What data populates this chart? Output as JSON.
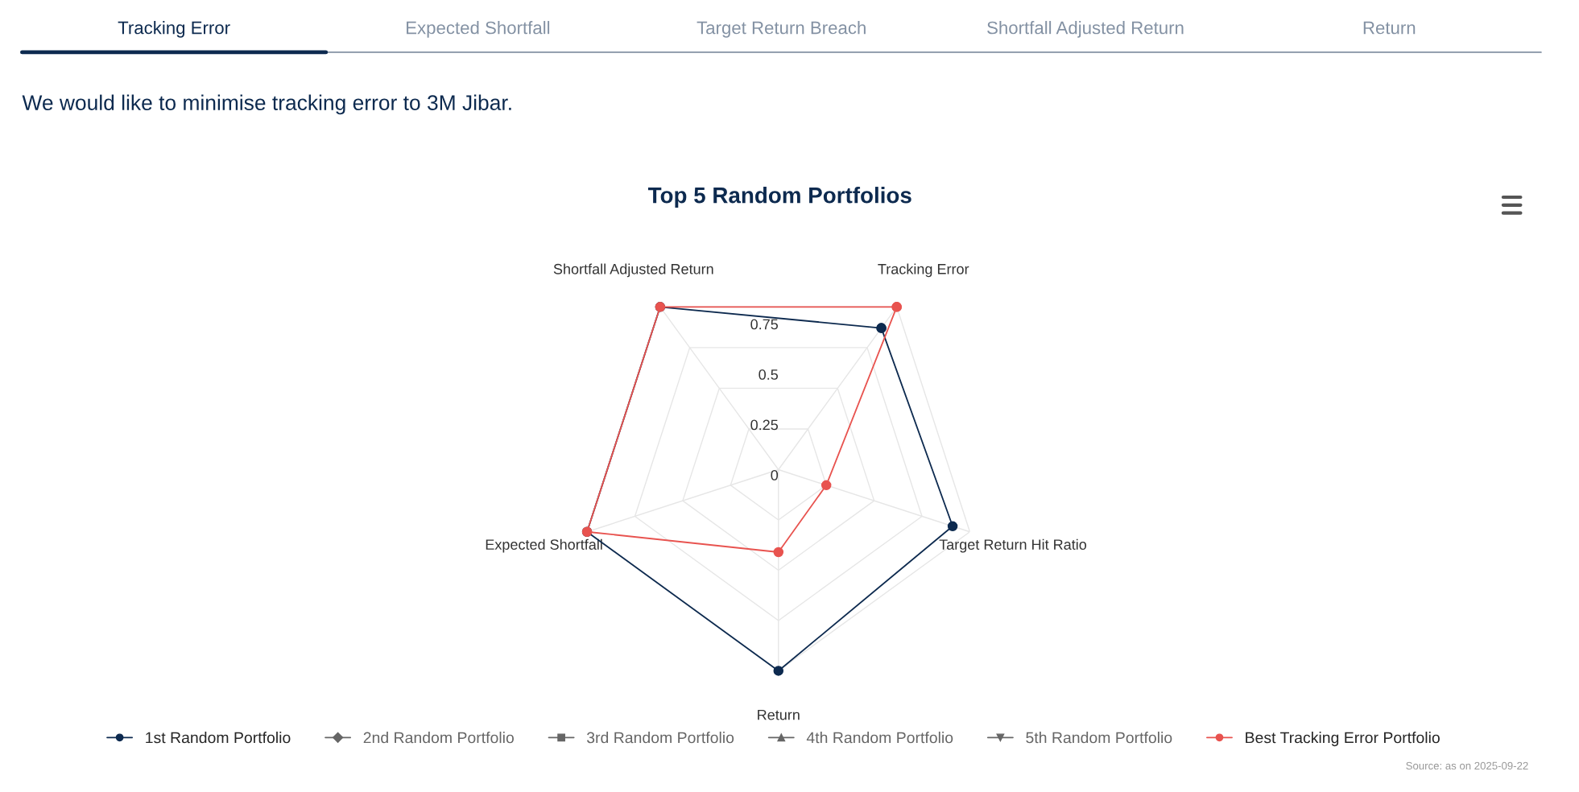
{
  "chart_data": {
    "type": "radar",
    "title": "Top 5 Random Portfolios",
    "subtitle": "We would like to minimise tracking error to 3M Jibar.",
    "categories": [
      "Tracking Error",
      "Target Return Hit Ratio",
      "Return",
      "Expected Shortfall",
      "Shortfall Adjusted Return"
    ],
    "series": [
      {
        "name": "1st Random Portfolio",
        "color": "#0d2a4f",
        "marker": "circle",
        "values": [
          0.87,
          0.91,
          1,
          1,
          1
        ]
      },
      {
        "name": "Best Tracking Error Portfolio",
        "color": "#e8534f",
        "marker": "circle",
        "values": [
          1,
          0.25,
          0.41,
          1,
          1
        ]
      }
    ],
    "ylim": [
      0,
      1
    ],
    "yticks": [
      0,
      0.25,
      0.5,
      0.75
    ],
    "grid": true,
    "legend": "bottom",
    "annotations": [
      "Tracking Error",
      "Expected Shortfall",
      "Target Return Breach",
      "Shortfall Adjusted Return",
      "Return",
      "2nd Random Portfolio",
      "3rd Random Portfolio",
      "4th Random Portfolio",
      "5th Random Portfolio",
      "Source: as on 2025-09-22"
    ]
  }
}
